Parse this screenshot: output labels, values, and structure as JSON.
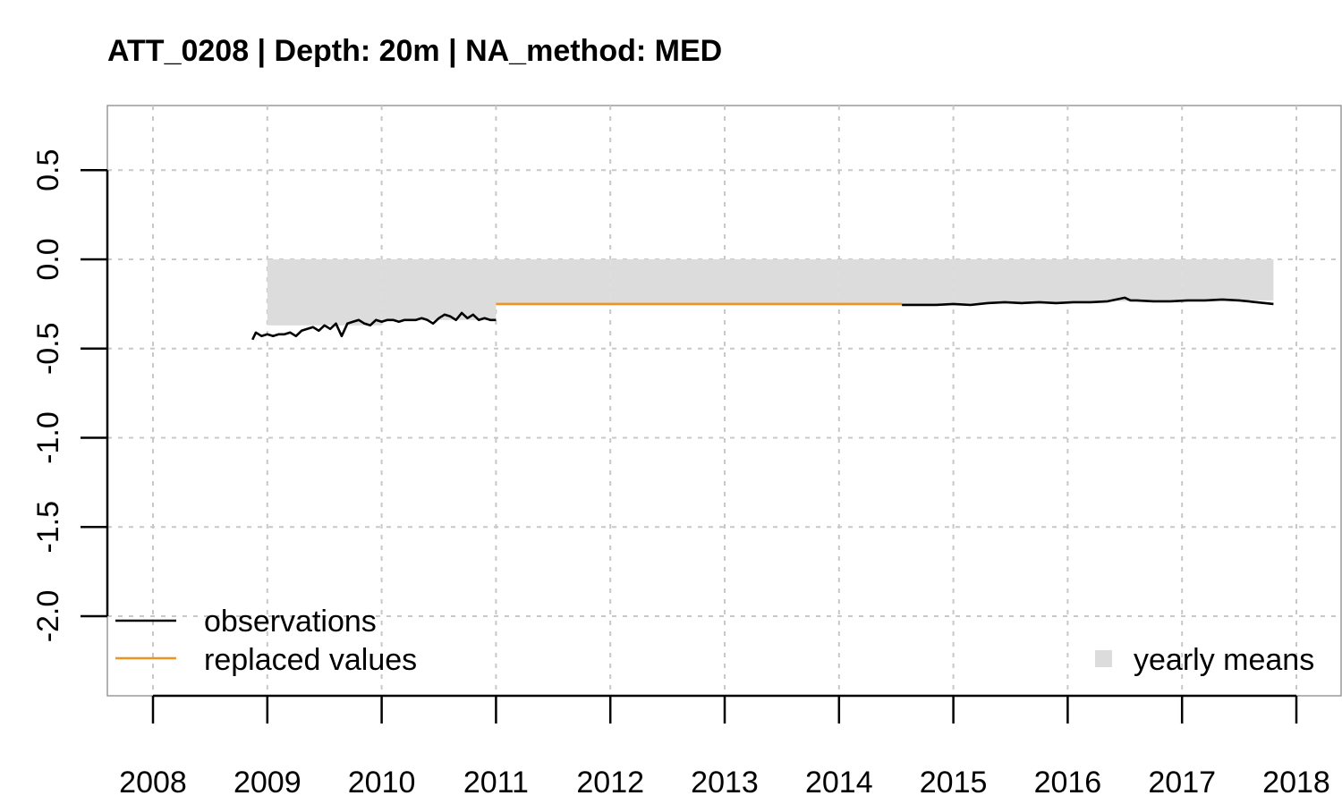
{
  "chart_data": {
    "type": "line",
    "title": "ATT_0208 | Depth: 20m | NA_method: MED",
    "xlabel": "",
    "ylabel": "",
    "xlim": [
      2007.6,
      2018.4
    ],
    "ylim": [
      -2.45,
      0.86
    ],
    "x_ticks": [
      2008,
      2009,
      2010,
      2011,
      2012,
      2013,
      2014,
      2015,
      2016,
      2017,
      2018
    ],
    "x_tick_labels": [
      "2008",
      "2009",
      "2010",
      "2011",
      "2012",
      "2013",
      "2014",
      "2015",
      "2016",
      "2017",
      "2018"
    ],
    "y_ticks": [
      0.5,
      0.0,
      -0.5,
      -1.0,
      -1.5,
      -2.0
    ],
    "y_tick_labels": [
      "0.5",
      "0.0",
      "-0.5",
      "-1.0",
      "-1.5",
      "-2.0"
    ],
    "grid": true,
    "legend": {
      "placement": "bottom",
      "entries": [
        {
          "label": "observations",
          "color": "#000000",
          "kind": "line"
        },
        {
          "label": "replaced values",
          "color": "#f0921e",
          "kind": "line"
        },
        {
          "label": "yearly means",
          "color": "#dcdcdc",
          "kind": "square"
        }
      ]
    },
    "series": [
      {
        "name": "observations",
        "color": "#000000",
        "segments": [
          {
            "x": [
              2008.87,
              2008.9,
              2008.95,
              2009.0,
              2009.05,
              2009.1,
              2009.15,
              2009.2,
              2009.25,
              2009.3,
              2009.35,
              2009.4,
              2009.45,
              2009.5,
              2009.55,
              2009.6,
              2009.65,
              2009.7,
              2009.75,
              2009.8,
              2009.85,
              2009.9,
              2009.95,
              2010.0,
              2010.05,
              2010.1,
              2010.15,
              2010.2,
              2010.25,
              2010.3,
              2010.35,
              2010.4,
              2010.45,
              2010.5,
              2010.55,
              2010.6,
              2010.65,
              2010.7,
              2010.75,
              2010.8,
              2010.85,
              2010.9,
              2010.95,
              2011.0
            ],
            "y": [
              -0.45,
              -0.41,
              -0.43,
              -0.42,
              -0.43,
              -0.42,
              -0.42,
              -0.41,
              -0.43,
              -0.4,
              -0.39,
              -0.38,
              -0.4,
              -0.37,
              -0.39,
              -0.36,
              -0.43,
              -0.36,
              -0.35,
              -0.34,
              -0.36,
              -0.37,
              -0.34,
              -0.35,
              -0.34,
              -0.34,
              -0.35,
              -0.34,
              -0.34,
              -0.34,
              -0.33,
              -0.34,
              -0.36,
              -0.33,
              -0.31,
              -0.32,
              -0.34,
              -0.3,
              -0.33,
              -0.31,
              -0.34,
              -0.33,
              -0.34,
              -0.34
            ]
          },
          {
            "x": [
              2014.55,
              2014.7,
              2014.85,
              2015.0,
              2015.15,
              2015.3,
              2015.45,
              2015.6,
              2015.75,
              2015.9,
              2016.05,
              2016.2,
              2016.35,
              2016.5,
              2016.55,
              2016.6,
              2016.75,
              2016.9,
              2017.05,
              2017.2,
              2017.35,
              2017.5,
              2017.65,
              2017.8
            ],
            "y": [
              -0.255,
              -0.255,
              -0.255,
              -0.25,
              -0.255,
              -0.245,
              -0.24,
              -0.245,
              -0.24,
              -0.245,
              -0.24,
              -0.24,
              -0.235,
              -0.215,
              -0.23,
              -0.23,
              -0.235,
              -0.235,
              -0.23,
              -0.23,
              -0.225,
              -0.23,
              -0.24,
              -0.25
            ]
          }
        ]
      },
      {
        "name": "replaced values",
        "color": "#f0921e",
        "segments": [
          {
            "x": [
              2011.0,
              2014.55
            ],
            "y": [
              -0.25,
              -0.25
            ]
          }
        ]
      },
      {
        "name": "yearly means",
        "color": "#dcdcdc",
        "kind": "bars",
        "segments": [
          {
            "x0": 2009.0,
            "x1": 2010.0,
            "y": -0.37
          },
          {
            "x0": 2010.0,
            "x1": 2011.0,
            "y": -0.34
          },
          {
            "x0": 2011.0,
            "x1": 2012.0,
            "y": -0.25
          },
          {
            "x0": 2012.0,
            "x1": 2013.0,
            "y": -0.25
          },
          {
            "x0": 2013.0,
            "x1": 2014.0,
            "y": -0.25
          },
          {
            "x0": 2014.0,
            "x1": 2015.0,
            "y": -0.25
          },
          {
            "x0": 2015.0,
            "x1": 2016.0,
            "y": -0.245
          },
          {
            "x0": 2016.0,
            "x1": 2017.0,
            "y": -0.235
          },
          {
            "x0": 2017.0,
            "x1": 2017.8,
            "y": -0.23
          }
        ]
      }
    ]
  }
}
